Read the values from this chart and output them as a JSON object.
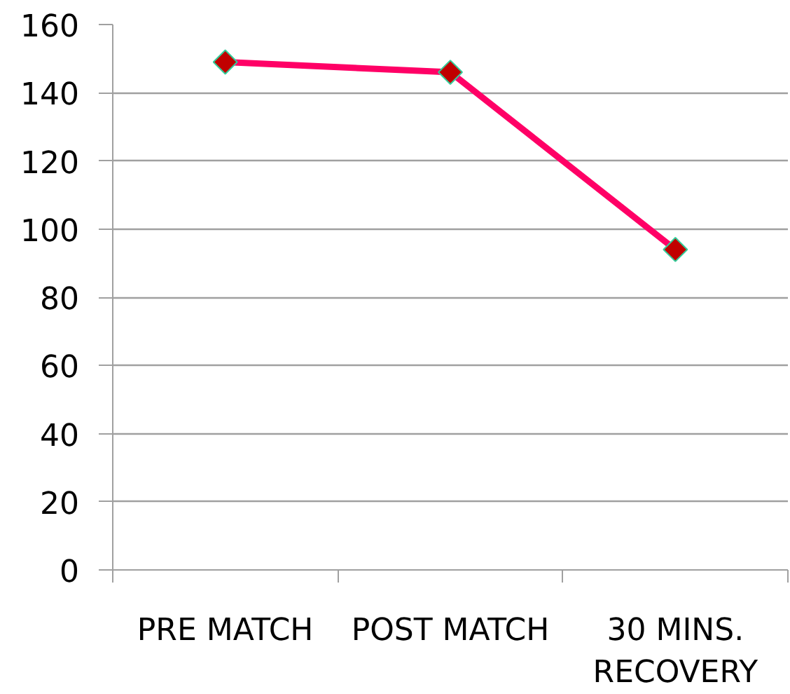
{
  "chart_data": {
    "type": "line",
    "categories": [
      "PRE MATCH",
      "POST MATCH",
      "30 MINS. RECOVERY"
    ],
    "series": [
      {
        "color": "#ff0066",
        "values": [
          149,
          146,
          94
        ]
      }
    ],
    "ylim": [
      0,
      160
    ],
    "yticks": [
      0,
      20,
      40,
      60,
      80,
      100,
      120,
      140,
      160
    ],
    "grid": "y",
    "marker": "diamond",
    "line_style": "solid"
  }
}
